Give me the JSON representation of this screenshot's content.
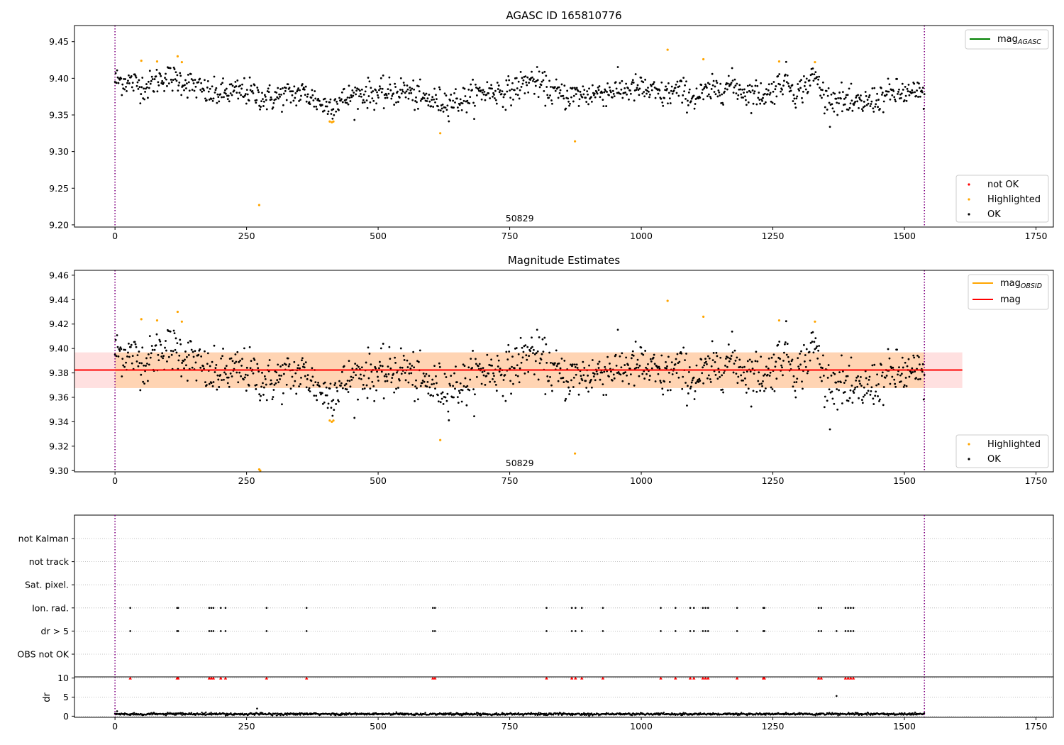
{
  "chart_data": [
    {
      "type": "scatter",
      "title": "AGASC ID 165810776",
      "xlim": [
        -77,
        1783
      ],
      "ylim": [
        9.197,
        9.472
      ],
      "xticks": [
        0,
        250,
        500,
        750,
        1000,
        1250,
        1500,
        1750
      ],
      "yticks": [
        9.2,
        9.25,
        9.3,
        9.35,
        9.4,
        9.45
      ],
      "obsid_boundaries": [
        0,
        1538
      ],
      "obsid_label": "50829",
      "legend_upper": {
        "placement": "upper-right",
        "entries": [
          {
            "label": "mag",
            "subscript": "AGASC",
            "color": "#008000",
            "kind": "line"
          }
        ]
      },
      "legend_lower": {
        "placement": "lower-right",
        "entries": [
          {
            "label": "not OK",
            "color": "#ff0000",
            "kind": "marker"
          },
          {
            "label": "Highlighted",
            "color": "#ffa500",
            "kind": "marker"
          },
          {
            "label": "OK",
            "color": "#000000",
            "kind": "marker"
          }
        ]
      },
      "series": [
        {
          "name": "OK",
          "color": "#000000",
          "ref": "ok_series"
        },
        {
          "name": "Highlighted",
          "color": "#ffa500",
          "points": [
            [
              50,
              9.424
            ],
            [
              80,
              9.423
            ],
            [
              119,
              9.43
            ],
            [
              127,
              9.422
            ],
            [
              274,
              9.227
            ],
            [
              408,
              9.341
            ],
            [
              412,
              9.34
            ],
            [
              415,
              9.341
            ],
            [
              618,
              9.325
            ],
            [
              874,
              9.314
            ],
            [
              1050,
              9.439
            ],
            [
              1118,
              9.426
            ],
            [
              1262,
              9.423
            ],
            [
              1330,
              9.422
            ]
          ]
        }
      ]
    },
    {
      "type": "scatter",
      "title": "Magnitude Estimates",
      "xlim": [
        -77,
        1783
      ],
      "ylim": [
        9.299,
        9.464
      ],
      "xticks": [
        0,
        250,
        500,
        750,
        1000,
        1250,
        1500,
        1750
      ],
      "yticks": [
        9.3,
        9.32,
        9.34,
        9.36,
        9.38,
        9.4,
        9.42,
        9.44,
        9.46
      ],
      "obsid_boundaries": [
        0,
        1538
      ],
      "obsid_label": "50829",
      "mag_mean": 9.3824,
      "obs_band": {
        "x": [
          0,
          1538
        ],
        "y": [
          9.3676,
          9.3968
        ],
        "color": "#ffa500"
      },
      "mag_band": {
        "x": [
          -77,
          1610
        ],
        "y": [
          9.3676,
          9.3968
        ],
        "color": "#ff0000"
      },
      "mag_line_x": [
        -77,
        1610
      ],
      "legend_upper": {
        "placement": "upper-right",
        "entries": [
          {
            "label": "mag",
            "subscript": "OBSID",
            "color": "#ffa500",
            "kind": "line"
          },
          {
            "label": "mag",
            "subscript": "",
            "color": "#ff0000",
            "kind": "line"
          }
        ]
      },
      "legend_lower": {
        "placement": "lower-right",
        "entries": [
          {
            "label": "Highlighted",
            "color": "#ffa500",
            "kind": "marker"
          },
          {
            "label": "OK",
            "color": "#000000",
            "kind": "marker"
          }
        ]
      },
      "series": [
        {
          "name": "OK",
          "color": "#000000",
          "ref": "ok_series"
        },
        {
          "name": "Highlighted",
          "color": "#ffa500",
          "points": [
            [
              50,
              9.424
            ],
            [
              80,
              9.423
            ],
            [
              119,
              9.43
            ],
            [
              127,
              9.422
            ],
            [
              274,
              9.301
            ],
            [
              276,
              9.3
            ],
            [
              408,
              9.341
            ],
            [
              412,
              9.34
            ],
            [
              415,
              9.341
            ],
            [
              618,
              9.325
            ],
            [
              874,
              9.314
            ],
            [
              1050,
              9.439
            ],
            [
              1118,
              9.426
            ],
            [
              1262,
              9.423
            ],
            [
              1330,
              9.422
            ]
          ]
        }
      ]
    },
    {
      "type": "scatter",
      "title": "",
      "flag_rows": [
        "not Kalman",
        "not track",
        "Sat. pixel.",
        "Ion. rad.",
        "dr > 5",
        "OBS not OK"
      ],
      "flag_points": {
        "Ion. rad.": [
          29,
          118,
          120,
          179,
          183,
          187,
          201,
          210,
          288,
          364,
          604,
          608,
          820,
          868,
          875,
          887,
          927,
          1037,
          1065,
          1093,
          1100,
          1117,
          1122,
          1127,
          1182,
          1232,
          1234,
          1337,
          1342,
          1388,
          1393,
          1398,
          1403
        ],
        "dr > 5": [
          29,
          118,
          120,
          179,
          183,
          187,
          201,
          210,
          288,
          364,
          604,
          608,
          820,
          868,
          875,
          887,
          927,
          1037,
          1065,
          1093,
          1100,
          1117,
          1122,
          1127,
          1182,
          1232,
          1234,
          1337,
          1342,
          1371,
          1388,
          1393,
          1398,
          1403
        ]
      },
      "obsid_boundaries": [
        0,
        1538
      ]
    },
    {
      "type": "scatter",
      "ylabel": "dr",
      "xlim": [
        -77,
        1783
      ],
      "ylim": [
        -0.3,
        10.3
      ],
      "yticks": [
        0,
        5,
        10
      ],
      "xticks": [
        0,
        250,
        500,
        750,
        1000,
        1250,
        1500,
        1750
      ],
      "clipped_markers_x": [
        29,
        118,
        120,
        179,
        183,
        187,
        201,
        210,
        288,
        364,
        604,
        608,
        820,
        868,
        875,
        887,
        927,
        1037,
        1065,
        1093,
        1100,
        1117,
        1122,
        1127,
        1182,
        1232,
        1234,
        1337,
        1342,
        1388,
        1393,
        1398,
        1403
      ],
      "clipped_at": 10,
      "obsid_boundaries": [
        0,
        1538
      ],
      "series": [
        {
          "name": "OK",
          "color": "#000000",
          "points": [
            [
              0,
              0.6
            ],
            [
              2,
              0.5
            ],
            [
              4,
              1.3
            ],
            [
              270,
              2.0
            ],
            [
              1371,
              5.3
            ]
          ]
        }
      ]
    }
  ],
  "ok_series": {
    "x_start": 0,
    "x_end": 1538,
    "step": 1.3,
    "segments": [
      [
        0,
        9.398
      ],
      [
        30,
        9.395
      ],
      [
        60,
        9.388
      ],
      [
        90,
        9.402
      ],
      [
        120,
        9.398
      ],
      [
        150,
        9.39
      ],
      [
        180,
        9.378
      ],
      [
        210,
        9.38
      ],
      [
        250,
        9.382
      ],
      [
        290,
        9.372
      ],
      [
        330,
        9.378
      ],
      [
        360,
        9.38
      ],
      [
        400,
        9.362
      ],
      [
        430,
        9.37
      ],
      [
        470,
        9.38
      ],
      [
        510,
        9.378
      ],
      [
        550,
        9.384
      ],
      [
        580,
        9.372
      ],
      [
        620,
        9.368
      ],
      [
        660,
        9.37
      ],
      [
        700,
        9.382
      ],
      [
        750,
        9.382
      ],
      [
        790,
        9.398
      ],
      [
        820,
        9.386
      ],
      [
        850,
        9.376
      ],
      [
        900,
        9.378
      ],
      [
        950,
        9.384
      ],
      [
        1000,
        9.386
      ],
      [
        1040,
        9.376
      ],
      [
        1070,
        9.384
      ],
      [
        1100,
        9.374
      ],
      [
        1140,
        9.384
      ],
      [
        1170,
        9.392
      ],
      [
        1200,
        9.38
      ],
      [
        1240,
        9.378
      ],
      [
        1275,
        9.4
      ],
      [
        1295,
        9.378
      ],
      [
        1330,
        9.404
      ],
      [
        1350,
        9.372
      ],
      [
        1380,
        9.372
      ],
      [
        1400,
        9.362
      ],
      [
        1440,
        9.37
      ],
      [
        1480,
        9.38
      ],
      [
        1538,
        9.378
      ]
    ],
    "dr_mean": 0.55
  }
}
